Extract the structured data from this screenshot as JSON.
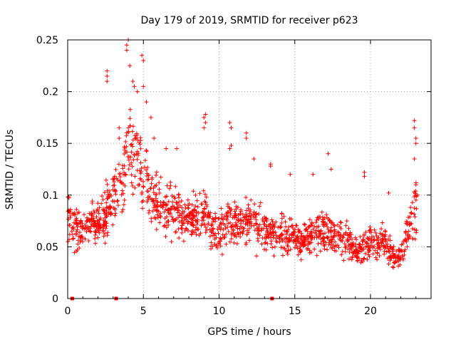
{
  "chart_data": {
    "type": "scatter",
    "title": "Day 179 of 2019, SRMTID for receiver p623",
    "xlabel": "GPS time / hours",
    "ylabel": "SRMTID / TECUs",
    "xlim": [
      0,
      24
    ],
    "ylim": [
      0,
      0.25
    ],
    "xticks": [
      0,
      5,
      10,
      15,
      20
    ],
    "xtick_labels": [
      "0",
      "5",
      "10",
      "15",
      "20"
    ],
    "yticks": [
      0,
      0.05,
      0.1,
      0.15,
      0.2,
      0.25
    ],
    "ytick_labels": [
      "0",
      "0.05",
      "0.1",
      "0.15",
      "0.2",
      "0.25"
    ],
    "grid": true,
    "marker": "plus",
    "color": "#ff0000",
    "zero_markers_x": [
      0.3,
      3.2,
      13.5
    ],
    "trend": [
      [
        0.0,
        0.08
      ],
      [
        0.5,
        0.065
      ],
      [
        1.0,
        0.065
      ],
      [
        1.5,
        0.075
      ],
      [
        2.0,
        0.075
      ],
      [
        2.5,
        0.08
      ],
      [
        3.0,
        0.095
      ],
      [
        3.5,
        0.115
      ],
      [
        4.0,
        0.14
      ],
      [
        4.5,
        0.135
      ],
      [
        5.0,
        0.125
      ],
      [
        5.5,
        0.1
      ],
      [
        6.0,
        0.09
      ],
      [
        6.5,
        0.085
      ],
      [
        7.0,
        0.085
      ],
      [
        7.5,
        0.08
      ],
      [
        8.0,
        0.075
      ],
      [
        8.5,
        0.08
      ],
      [
        9.0,
        0.085
      ],
      [
        9.5,
        0.065
      ],
      [
        10.0,
        0.065
      ],
      [
        10.5,
        0.075
      ],
      [
        11.0,
        0.07
      ],
      [
        11.5,
        0.075
      ],
      [
        12.0,
        0.08
      ],
      [
        12.5,
        0.07
      ],
      [
        13.0,
        0.065
      ],
      [
        13.5,
        0.065
      ],
      [
        14.0,
        0.065
      ],
      [
        14.5,
        0.06
      ],
      [
        15.0,
        0.055
      ],
      [
        15.5,
        0.055
      ],
      [
        16.0,
        0.06
      ],
      [
        16.5,
        0.065
      ],
      [
        17.0,
        0.065
      ],
      [
        17.5,
        0.06
      ],
      [
        18.0,
        0.06
      ],
      [
        18.5,
        0.055
      ],
      [
        19.0,
        0.045
      ],
      [
        19.5,
        0.05
      ],
      [
        20.0,
        0.055
      ],
      [
        20.5,
        0.055
      ],
      [
        21.0,
        0.055
      ],
      [
        21.5,
        0.04
      ],
      [
        22.0,
        0.04
      ],
      [
        22.5,
        0.065
      ],
      [
        23.0,
        0.085
      ]
    ],
    "peaks": [
      [
        2.6,
        0.22
      ],
      [
        2.6,
        0.215
      ],
      [
        2.6,
        0.21
      ],
      [
        3.4,
        0.165
      ],
      [
        3.4,
        0.155
      ],
      [
        3.9,
        0.245
      ],
      [
        3.9,
        0.24
      ],
      [
        4.0,
        0.25
      ],
      [
        4.1,
        0.225
      ],
      [
        4.3,
        0.21
      ],
      [
        4.4,
        0.205
      ],
      [
        4.6,
        0.2
      ],
      [
        4.9,
        0.235
      ],
      [
        5.0,
        0.23
      ],
      [
        5.0,
        0.205
      ],
      [
        5.2,
        0.19
      ],
      [
        5.5,
        0.175
      ],
      [
        5.7,
        0.155
      ],
      [
        6.5,
        0.145
      ],
      [
        7.2,
        0.145
      ],
      [
        9.0,
        0.175
      ],
      [
        9.1,
        0.178
      ],
      [
        9.1,
        0.17
      ],
      [
        9.0,
        0.165
      ],
      [
        10.7,
        0.17
      ],
      [
        10.8,
        0.165
      ],
      [
        10.7,
        0.145
      ],
      [
        10.8,
        0.148
      ],
      [
        11.8,
        0.16
      ],
      [
        11.8,
        0.155
      ],
      [
        12.3,
        0.135
      ],
      [
        13.4,
        0.13
      ],
      [
        13.4,
        0.128
      ],
      [
        14.7,
        0.12
      ],
      [
        16.2,
        0.12
      ],
      [
        17.2,
        0.14
      ],
      [
        17.4,
        0.125
      ],
      [
        19.6,
        0.122
      ],
      [
        19.6,
        0.118
      ],
      [
        21.2,
        0.102
      ],
      [
        22.9,
        0.172
      ],
      [
        22.9,
        0.165
      ],
      [
        23.0,
        0.155
      ],
      [
        23.0,
        0.15
      ],
      [
        22.9,
        0.135
      ],
      [
        23.0,
        0.11
      ],
      [
        23.1,
        0.1
      ]
    ]
  }
}
